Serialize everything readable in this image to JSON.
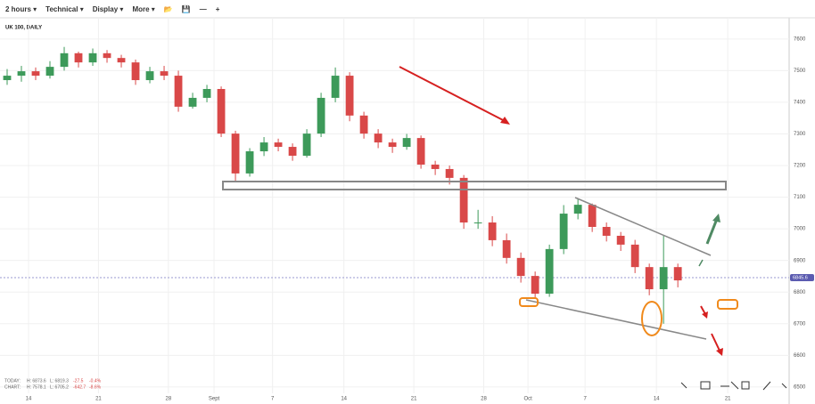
{
  "toolbar": {
    "interval": "2 hours",
    "menus": [
      "Technical",
      "Display",
      "More"
    ]
  },
  "chart_data": {
    "type": "candlestick",
    "title": "UK 100, DAILY",
    "x": [
      0,
      1,
      2,
      3,
      4,
      5,
      6,
      7,
      8,
      9,
      10,
      11,
      12,
      13,
      14,
      15,
      16,
      17,
      18,
      19,
      20,
      21,
      22,
      23,
      24,
      25,
      26,
      27,
      28,
      29,
      30,
      31,
      32,
      33,
      34,
      35,
      36,
      37,
      38,
      39,
      40,
      41,
      42,
      43,
      44,
      45,
      46,
      47
    ],
    "open": [
      7470,
      7484,
      7498,
      7484,
      7512,
      7555,
      7526,
      7555,
      7540,
      7526,
      7470,
      7498,
      7484,
      7386,
      7414,
      7442,
      7301,
      7175,
      7245,
      7273,
      7259,
      7231,
      7301,
      7414,
      7484,
      7358,
      7301,
      7273,
      7259,
      7287,
      7203,
      7189,
      7161,
      7020,
      7020,
      6964,
      6908,
      6851,
      6795,
      6936,
      7048,
      7076,
      7006,
      6978,
      6950,
      6879,
      6809,
      6879
    ],
    "high": [
      7505,
      7515,
      7510,
      7530,
      7575,
      7560,
      7570,
      7565,
      7550,
      7535,
      7512,
      7515,
      7500,
      7430,
      7455,
      7450,
      7310,
      7255,
      7290,
      7285,
      7270,
      7315,
      7430,
      7510,
      7495,
      7370,
      7315,
      7285,
      7300,
      7295,
      7215,
      7200,
      7170,
      7060,
      7040,
      6985,
      6925,
      6865,
      6950,
      7075,
      7095,
      7080,
      7020,
      6990,
      6965,
      6890,
      6978,
      6890
    ],
    "low": [
      7455,
      7465,
      7470,
      7475,
      7500,
      7510,
      7515,
      7525,
      7510,
      7455,
      7460,
      7470,
      7370,
      7380,
      7400,
      7290,
      7150,
      7165,
      7230,
      7245,
      7215,
      7225,
      7290,
      7400,
      7340,
      7285,
      7255,
      7240,
      7250,
      7190,
      7170,
      7140,
      7000,
      7000,
      6945,
      6890,
      6830,
      6780,
      6785,
      6920,
      7030,
      6990,
      6960,
      6930,
      6860,
      6790,
      6700,
      6815
    ],
    "close": [
      7484,
      7498,
      7484,
      7512,
      7555,
      7526,
      7555,
      7540,
      7526,
      7470,
      7498,
      7484,
      7386,
      7414,
      7442,
      7301,
      7175,
      7245,
      7273,
      7259,
      7231,
      7301,
      7414,
      7484,
      7358,
      7301,
      7273,
      7259,
      7287,
      7203,
      7189,
      7161,
      7020,
      7020,
      6964,
      6908,
      6851,
      6795,
      6936,
      7048,
      7076,
      7006,
      6978,
      6950,
      6879,
      6809,
      6879,
      6837
    ],
    "up_color": "#3d9a5a",
    "down_color": "#d94848",
    "xlim": [
      -0.5,
      54.8
    ],
    "ylim": [
      6480,
      7622
    ],
    "xticks": [
      {
        "value": 1.5,
        "label": "14"
      },
      {
        "value": 6.4,
        "label": "21"
      },
      {
        "value": 11.3,
        "label": "28"
      },
      {
        "value": 14.5,
        "label": "Sept"
      },
      {
        "value": 18.6,
        "label": "7"
      },
      {
        "value": 23.6,
        "label": "14"
      },
      {
        "value": 28.5,
        "label": "21"
      },
      {
        "value": 33.4,
        "label": "28"
      },
      {
        "value": 36.5,
        "label": "Oct"
      },
      {
        "value": 40.5,
        "label": "7"
      },
      {
        "value": 45.5,
        "label": "14"
      },
      {
        "value": 50.5,
        "label": "21"
      }
    ],
    "yticks": [
      7600,
      7500,
      7400,
      7300,
      7200,
      7100,
      7000,
      6900,
      6800,
      6700,
      6600,
      6500
    ],
    "last_price": 6845.6,
    "grid": true
  },
  "stats": [
    [
      "TODAY:",
      "H: 6873.6",
      "L: 6819.3",
      "-27.5",
      "-0.4%"
    ],
    [
      "CHART:",
      "H: 7578.1",
      "L: 6705.2",
      "-642.7",
      "-8.6%"
    ]
  ]
}
